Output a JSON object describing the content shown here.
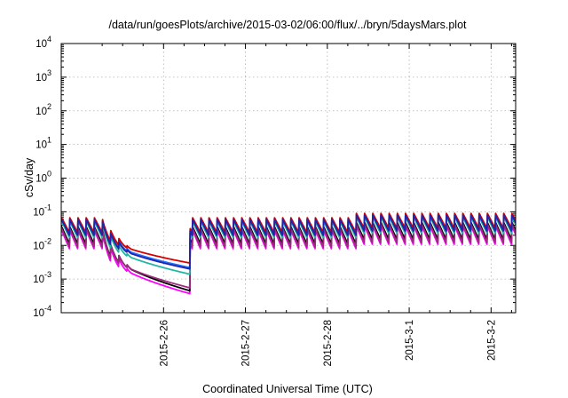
{
  "chart_data": {
    "type": "line",
    "title": "/data/run/goesPlots/archive/2015-03-02/06:00/flux/../bryn/5daysMars.plot",
    "xlabel": "Coordinated Universal Time (UTC)",
    "ylabel": "cSv/day",
    "yscale": "log",
    "ylim": [
      0.0001,
      10000
    ],
    "xlim_days": [
      -1.25,
      4.3
    ],
    "y_ticks": [
      {
        "base": "10",
        "exp": "-4"
      },
      {
        "base": "10",
        "exp": "-3"
      },
      {
        "base": "10",
        "exp": "-2"
      },
      {
        "base": "10",
        "exp": "-1"
      },
      {
        "base": "10",
        "exp": "0"
      },
      {
        "base": "10",
        "exp": "1"
      },
      {
        "base": "10",
        "exp": "2"
      },
      {
        "base": "10",
        "exp": "3"
      },
      {
        "base": "10",
        "exp": "4"
      }
    ],
    "x_ticks": [
      "2015-2-26",
      "2015-2-27",
      "2015-2-28",
      "2015-3-1",
      "2015-3-2"
    ],
    "grid": true,
    "legend": "none",
    "series_colors": [
      "#ff00ff",
      "#000000",
      "#9b2b7c",
      "#20b7a3",
      "#1f6fff",
      "#d40000",
      "#2222aa"
    ],
    "sawtooth_period_days": 0.1,
    "series": [
      {
        "color": "#ff00ff",
        "baseline_peak": 0.03,
        "baseline_trough": 0.008,
        "gap_min": 0.00037
      },
      {
        "color": "#000000",
        "baseline_peak": 0.038,
        "baseline_trough": 0.011,
        "gap_min": 0.00045
      },
      {
        "color": "#9b2b7c",
        "baseline_peak": 0.034,
        "baseline_trough": 0.009,
        "gap_min": 0.00055
      },
      {
        "color": "#20b7a3",
        "baseline_peak": 0.055,
        "baseline_trough": 0.017,
        "gap_min": 0.0014
      },
      {
        "color": "#1f6fff",
        "baseline_peak": 0.065,
        "baseline_trough": 0.022,
        "gap_min": 0.0022
      },
      {
        "color": "#d40000",
        "baseline_peak": 0.07,
        "baseline_trough": 0.024,
        "gap_min": 0.003
      },
      {
        "color": "#2222aa",
        "baseline_peak": 0.062,
        "baseline_trough": 0.02,
        "gap_min": 0.002
      }
    ],
    "events": {
      "decay_start_day": -0.75,
      "decay_end_day": 0.32,
      "recovery_day": 0.32,
      "late_enhancement_start_day": 2.35,
      "late_enhancement_factor": 1.35
    }
  }
}
